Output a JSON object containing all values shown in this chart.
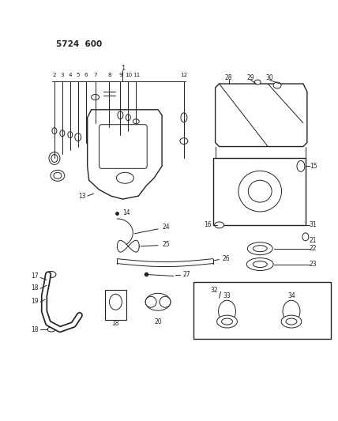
{
  "bg_color": "#ffffff",
  "line_color": "#222222",
  "figsize": [
    4.28,
    5.33
  ],
  "dpi": 100,
  "header": "5724  600"
}
